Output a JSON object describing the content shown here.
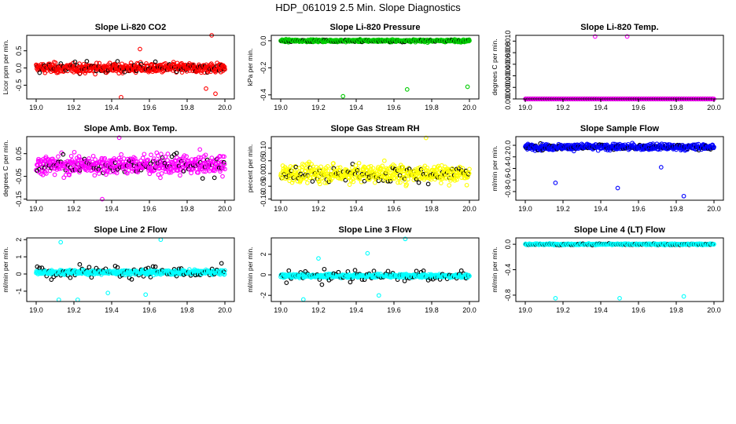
{
  "figure_title": "HDP_061019  2.5 Min. Slope Diagnostics",
  "chart_data": [
    {
      "type": "scatter",
      "title": "Slope Li-820 CO2",
      "ylabel": "Licor ppm per min.",
      "xlabel": "",
      "xlim": [
        18.95,
        20.05
      ],
      "xticks": [
        19.0,
        19.2,
        19.4,
        19.6,
        19.8,
        20.0
      ],
      "ylim": [
        -0.9,
        0.95
      ],
      "yticks": [
        -0.5,
        0.0,
        0.5
      ],
      "yticklabels": [
        "-0.5",
        "0.0",
        "0.5"
      ],
      "color": "#ff0000",
      "center": 0.0,
      "spread": 0.2,
      "black_spread": 0.2,
      "outliers": [
        {
          "x": 19.45,
          "y": -0.85
        },
        {
          "x": 19.55,
          "y": 0.55
        },
        {
          "x": 19.93,
          "y": 0.95
        },
        {
          "x": 19.95,
          "y": -0.75
        },
        {
          "x": 19.9,
          "y": -0.6
        }
      ]
    },
    {
      "type": "scatter",
      "title": "Slope Li-820 Pressure",
      "ylabel": "kPa per min.",
      "xlabel": "",
      "xlim": [
        18.95,
        20.05
      ],
      "xticks": [
        19.0,
        19.2,
        19.4,
        19.6,
        19.8,
        20.0
      ],
      "ylim": [
        -0.43,
        0.04
      ],
      "yticks": [
        -0.4,
        -0.2,
        0.0
      ],
      "yticklabels": [
        "-0.4",
        "-0.2",
        "0.0"
      ],
      "color": "#00cc00",
      "center": 0.0,
      "spread": 0.012,
      "black_spread": 0.012,
      "outliers": [
        {
          "x": 19.33,
          "y": -0.41
        },
        {
          "x": 19.67,
          "y": -0.36
        },
        {
          "x": 19.99,
          "y": -0.34
        }
      ]
    },
    {
      "type": "scatter",
      "title": "Slope Li-820 Temp.",
      "ylabel": "degrees C per min.",
      "xlabel": "",
      "xlim": [
        18.95,
        20.05
      ],
      "xticks": [
        19.0,
        19.2,
        19.4,
        19.6,
        19.8,
        20.0
      ],
      "ylim": [
        0.0,
        0.0011
      ],
      "yticks": [
        0.0,
        0.0002,
        0.0004,
        0.0006,
        0.0008,
        0.001
      ],
      "yticklabels": [
        "0.0000",
        "0.0002",
        "0.0004",
        "0.0006",
        "0.0008",
        "0.0010"
      ],
      "color": "#ff00ff",
      "center": 0.0,
      "spread": 0.0,
      "black_spread": 0.0,
      "outliers": [
        {
          "x": 19.37,
          "y": 0.00108
        },
        {
          "x": 19.54,
          "y": 0.00108
        }
      ]
    },
    {
      "type": "scatter",
      "title": "Slope Amb. Box Temp.",
      "ylabel": "degrees C per min.",
      "xlabel": "",
      "xlim": [
        18.95,
        20.05
      ],
      "xticks": [
        19.0,
        19.2,
        19.4,
        19.6,
        19.8,
        20.0
      ],
      "ylim": [
        -0.155,
        0.125
      ],
      "yticks": [
        -0.15,
        -0.05,
        0.05
      ],
      "yticklabels": [
        "-0.15",
        "-0.05",
        "0.05"
      ],
      "color": "#ff00ff",
      "center": 0.0,
      "spread": 0.06,
      "black_spread": 0.06,
      "outliers": [
        {
          "x": 19.44,
          "y": 0.12
        },
        {
          "x": 19.35,
          "y": -0.15
        }
      ]
    },
    {
      "type": "scatter",
      "title": "Slope Gas Stream RH",
      "ylabel": "percent per min.",
      "xlabel": "",
      "xlim": [
        18.95,
        20.05
      ],
      "xticks": [
        19.0,
        19.2,
        19.4,
        19.6,
        19.8,
        20.0
      ],
      "ylim": [
        -0.105,
        0.145
      ],
      "yticks": [
        -0.1,
        -0.05,
        0.0,
        0.05,
        0.1
      ],
      "yticklabels": [
        "-0.10",
        "-0.05",
        "0.00",
        "0.05",
        "0.10"
      ],
      "color": "#ffff00",
      "center": 0.0,
      "spread": 0.05,
      "black_spread": 0.05,
      "outliers": [
        {
          "x": 19.77,
          "y": 0.14
        }
      ]
    },
    {
      "type": "scatter",
      "title": "Slope Sample Flow",
      "ylabel": "ml/min per min.",
      "xlabel": "",
      "xlim": [
        18.95,
        20.05
      ],
      "xticks": [
        19.0,
        19.2,
        19.4,
        19.6,
        19.8,
        20.0
      ],
      "ylim": [
        -0.95,
        0.15
      ],
      "yticks": [
        -0.8,
        -0.6,
        -0.4,
        -0.2,
        0.0
      ],
      "yticklabels": [
        "-0.8",
        "-0.6",
        "-0.4",
        "-0.2",
        "0.0"
      ],
      "color": "#0000ff",
      "center": -0.03,
      "spread": 0.07,
      "black_spread": 0.07,
      "outliers": [
        {
          "x": 19.16,
          "y": -0.65
        },
        {
          "x": 19.49,
          "y": -0.74
        },
        {
          "x": 19.84,
          "y": -0.88
        },
        {
          "x": 19.72,
          "y": -0.38
        }
      ]
    },
    {
      "type": "scatter",
      "title": "Slope Line 2 Flow",
      "ylabel": "ml/min per min.",
      "xlabel": "",
      "xlim": [
        18.95,
        20.05
      ],
      "xticks": [
        19.0,
        19.2,
        19.4,
        19.6,
        19.8,
        20.0
      ],
      "ylim": [
        -1.6,
        2.1
      ],
      "yticks": [
        -1,
        0,
        1,
        2
      ],
      "yticklabels": [
        "-1",
        "0",
        "1",
        "2"
      ],
      "color": "#00ffff",
      "center": 0.1,
      "spread": 0.18,
      "black_spread": 0.55,
      "outliers": [
        {
          "x": 19.13,
          "y": 1.85
        },
        {
          "x": 19.12,
          "y": -1.5
        },
        {
          "x": 19.22,
          "y": -1.5
        },
        {
          "x": 19.66,
          "y": 2.0
        },
        {
          "x": 19.58,
          "y": -1.2
        },
        {
          "x": 19.38,
          "y": -1.1
        }
      ]
    },
    {
      "type": "scatter",
      "title": "Slope Line 3 Flow",
      "ylabel": "ml/min per min.",
      "xlabel": "",
      "xlim": [
        18.95,
        20.05
      ],
      "xticks": [
        19.0,
        19.2,
        19.4,
        19.6,
        19.8,
        20.0
      ],
      "ylim": [
        -2.6,
        3.6
      ],
      "yticks": [
        -2,
        0,
        2
      ],
      "yticklabels": [
        "-2",
        "0",
        "2"
      ],
      "color": "#00ffff",
      "center": -0.1,
      "spread": 0.25,
      "black_spread": 0.9,
      "outliers": [
        {
          "x": 19.66,
          "y": 3.5
        },
        {
          "x": 19.12,
          "y": -2.4
        },
        {
          "x": 19.2,
          "y": 1.6
        },
        {
          "x": 19.46,
          "y": 2.1
        },
        {
          "x": 19.52,
          "y": -2.0
        }
      ]
    },
    {
      "type": "scatter",
      "title": "Slope Line 4 (LT) Flow",
      "ylabel": "ml/min per min.",
      "xlabel": "",
      "xlim": [
        18.95,
        20.05
      ],
      "xticks": [
        19.0,
        19.2,
        19.4,
        19.6,
        19.8,
        20.0
      ],
      "ylim": [
        -0.9,
        0.1
      ],
      "yticks": [
        -0.8,
        -0.4,
        0.0
      ],
      "yticklabels": [
        "-0.8",
        "-0.4",
        "0.0"
      ],
      "color": "#00ffff",
      "center": 0.0,
      "spread": 0.015,
      "black_spread": 0.015,
      "outliers": [
        {
          "x": 19.16,
          "y": -0.85
        },
        {
          "x": 19.5,
          "y": -0.85
        },
        {
          "x": 19.84,
          "y": -0.82
        }
      ]
    }
  ]
}
